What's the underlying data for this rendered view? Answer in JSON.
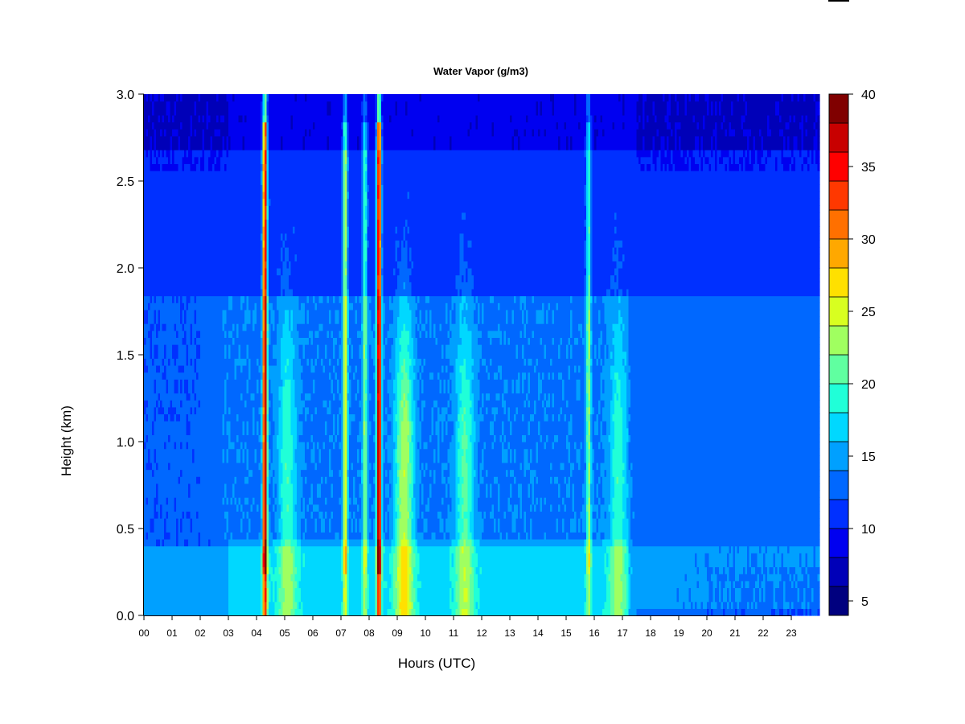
{
  "chart_data": {
    "type": "heatmap",
    "title": "Water Vapor (g/m3)",
    "xlabel": "Hours (UTC)",
    "ylabel": "Height (km)",
    "xlim": [
      0,
      24
    ],
    "ylim": [
      0.0,
      3.0
    ],
    "x_ticks": [
      "00",
      "01",
      "02",
      "03",
      "04",
      "05",
      "06",
      "07",
      "08",
      "09",
      "10",
      "11",
      "12",
      "13",
      "14",
      "15",
      "16",
      "17",
      "18",
      "19",
      "20",
      "21",
      "22",
      "23"
    ],
    "y_ticks": [
      "0.0",
      "0.5",
      "1.0",
      "1.5",
      "2.0",
      "2.5",
      "3.0"
    ],
    "colorbar": {
      "levels": [
        4,
        6,
        8,
        10,
        12,
        14,
        16,
        18,
        20,
        22,
        24,
        26,
        28,
        30,
        32,
        34,
        36,
        38,
        40
      ],
      "tick_values": [
        5,
        10,
        15,
        20,
        25,
        30,
        35,
        40
      ],
      "tick_labels": [
        "5",
        "10",
        "15",
        "20",
        "25",
        "30",
        "35",
        "40"
      ],
      "colors": [
        "#00007f",
        "#0000b8",
        "#0000f0",
        "#0030ff",
        "#0068ff",
        "#00a0ff",
        "#00d8ff",
        "#20ffd8",
        "#60ffa0",
        "#a0ff60",
        "#d8ff20",
        "#ffe000",
        "#ffa800",
        "#ff7000",
        "#ff3800",
        "#ff0000",
        "#c80000",
        "#800000"
      ]
    },
    "features": [
      {
        "type": "background_layers",
        "description": "Value increases with decreasing height: ~15 g/m3 near surface (0-0.4 km), ~13 g/m3 mid levels (0.4-1.85 km), ~11 g/m3 aloft (1.85-2.7 km), ~8 g/m3 top"
      },
      {
        "type": "spike",
        "hour": 4.3,
        "peak": 38
      },
      {
        "type": "spike",
        "hour": 7.15,
        "peak": 26
      },
      {
        "type": "spike",
        "hour": 7.85,
        "peak": 22
      },
      {
        "type": "spike",
        "hour": 8.35,
        "peak": 39
      },
      {
        "type": "spike",
        "hour": 15.8,
        "peak": 22
      },
      {
        "type": "plume",
        "hour": 5.1,
        "peak": 20
      },
      {
        "type": "plume",
        "hour": 9.25,
        "peak": 24
      },
      {
        "type": "plume",
        "hour": 11.4,
        "peak": 21
      },
      {
        "type": "plume",
        "hour": 16.85,
        "peak": 20
      }
    ]
  }
}
